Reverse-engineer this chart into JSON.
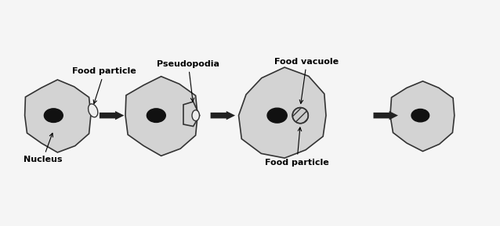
{
  "bg_color": "#f5f5f5",
  "amoeba_fill": "#d3d3d3",
  "amoeba_edge": "#333333",
  "nucleus_fill": "#111111",
  "nucleus_edge": "#111111",
  "arrow_fill": "#222222",
  "food_particle_fill": "#e8e8e8",
  "food_vacuole_fill": "#cccccc",
  "labels": {
    "food_particle_1": "Food particle",
    "nucleus": "Nucleus",
    "pseudopodia": "Pseudopodia",
    "food_vacuole": "Food vacuole",
    "food_particle_2": "Food particle"
  },
  "label_fontsize": 8,
  "label_fontweight": "bold",
  "figsize": [
    6.38,
    2.89
  ],
  "dpi": 100
}
